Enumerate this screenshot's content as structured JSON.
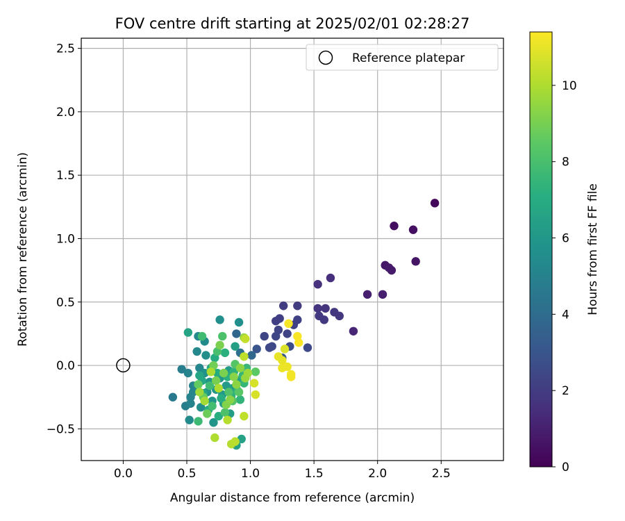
{
  "chart_data": {
    "type": "scatter",
    "title": "FOV centre drift starting at 2025/02/01 02:28:27",
    "xlabel": "Angular distance from reference (arcmin)",
    "ylabel": "Rotation from reference (arcmin)",
    "xlim": [
      -0.33,
      2.99
    ],
    "ylim": [
      -0.75,
      2.58
    ],
    "xticks": [
      "0.0",
      "0.5",
      "1.0",
      "1.5",
      "2.0",
      "2.5"
    ],
    "xtick_values": [
      0,
      0.5,
      1.0,
      1.5,
      2.0,
      2.5
    ],
    "yticks": [
      "−0.5",
      "0.0",
      "0.5",
      "1.0",
      "1.5",
      "2.0",
      "2.5"
    ],
    "ytick_values": [
      -0.5,
      0,
      0.5,
      1.0,
      1.5,
      2.0,
      2.5
    ],
    "grid": true,
    "legend": {
      "position": "upper-right",
      "entries": [
        "Reference platepar"
      ]
    },
    "reference_point": {
      "x": 0.0,
      "y": 0.0,
      "marker": "open-circle"
    },
    "colorbar": {
      "label": "Hours from first FF file",
      "min": 0,
      "max": 11.4,
      "ticks": [
        "0",
        "2",
        "4",
        "6",
        "8",
        "10"
      ],
      "tick_values": [
        0,
        2,
        4,
        6,
        8,
        10
      ],
      "colormap": "viridis"
    },
    "series": [
      {
        "points": [
          {
            "x": 2.45,
            "y": 1.28,
            "c": 0.2
          },
          {
            "x": 2.13,
            "y": 1.1,
            "c": 0.4
          },
          {
            "x": 2.28,
            "y": 1.07,
            "c": 0.5
          },
          {
            "x": 2.3,
            "y": 0.82,
            "c": 0.6
          },
          {
            "x": 2.06,
            "y": 0.79,
            "c": 0.7
          },
          {
            "x": 2.09,
            "y": 0.77,
            "c": 0.8
          },
          {
            "x": 2.11,
            "y": 0.75,
            "c": 0.8
          },
          {
            "x": 1.92,
            "y": 0.56,
            "c": 1.0
          },
          {
            "x": 2.04,
            "y": 0.56,
            "c": 1.0
          },
          {
            "x": 1.81,
            "y": 0.27,
            "c": 1.2
          },
          {
            "x": 1.63,
            "y": 0.69,
            "c": 1.5
          },
          {
            "x": 1.53,
            "y": 0.64,
            "c": 1.6
          },
          {
            "x": 1.53,
            "y": 0.45,
            "c": 1.7
          },
          {
            "x": 1.59,
            "y": 0.45,
            "c": 1.7
          },
          {
            "x": 1.66,
            "y": 0.42,
            "c": 1.8
          },
          {
            "x": 1.7,
            "y": 0.39,
            "c": 1.8
          },
          {
            "x": 1.54,
            "y": 0.39,
            "c": 1.9
          },
          {
            "x": 1.58,
            "y": 0.36,
            "c": 1.9
          },
          {
            "x": 1.26,
            "y": 0.47,
            "c": 2.0
          },
          {
            "x": 1.37,
            "y": 0.47,
            "c": 2.0
          },
          {
            "x": 1.2,
            "y": 0.35,
            "c": 2.1
          },
          {
            "x": 1.23,
            "y": 0.37,
            "c": 2.1
          },
          {
            "x": 1.37,
            "y": 0.36,
            "c": 2.2
          },
          {
            "x": 1.34,
            "y": 0.32,
            "c": 2.2
          },
          {
            "x": 1.22,
            "y": 0.28,
            "c": 2.3
          },
          {
            "x": 1.29,
            "y": 0.25,
            "c": 2.3
          },
          {
            "x": 1.11,
            "y": 0.23,
            "c": 2.4
          },
          {
            "x": 1.2,
            "y": 0.23,
            "c": 2.4
          },
          {
            "x": 1.45,
            "y": 0.14,
            "c": 2.5
          },
          {
            "x": 1.15,
            "y": 0.14,
            "c": 2.5
          },
          {
            "x": 1.17,
            "y": 0.15,
            "c": 2.5
          },
          {
            "x": 1.31,
            "y": 0.15,
            "c": 2.6
          },
          {
            "x": 1.05,
            "y": 0.13,
            "c": 3.0
          },
          {
            "x": 1.25,
            "y": 0.06,
            "c": 3.2
          },
          {
            "x": 0.89,
            "y": 0.25,
            "c": 3.8
          },
          {
            "x": 1.01,
            "y": 0.08,
            "c": 3.8
          },
          {
            "x": 0.92,
            "y": 0.1,
            "c": 4.2
          },
          {
            "x": 0.39,
            "y": -0.25,
            "c": 4.6
          },
          {
            "x": 0.46,
            "y": -0.03,
            "c": 4.8
          },
          {
            "x": 0.49,
            "y": -0.32,
            "c": 4.8
          },
          {
            "x": 0.51,
            "y": -0.06,
            "c": 5.0
          },
          {
            "x": 0.53,
            "y": -0.3,
            "c": 5.0
          },
          {
            "x": 0.53,
            "y": -0.25,
            "c": 5.0
          },
          {
            "x": 0.55,
            "y": -0.21,
            "c": 5.1
          },
          {
            "x": 0.55,
            "y": -0.16,
            "c": 5.1
          },
          {
            "x": 0.57,
            "y": -0.19,
            "c": 5.1
          },
          {
            "x": 0.6,
            "y": -0.02,
            "c": 5.2
          },
          {
            "x": 0.58,
            "y": 0.11,
            "c": 5.3
          },
          {
            "x": 0.59,
            "y": 0.23,
            "c": 5.3
          },
          {
            "x": 0.64,
            "y": 0.19,
            "c": 5.4
          },
          {
            "x": 0.52,
            "y": -0.43,
            "c": 5.4
          },
          {
            "x": 0.61,
            "y": -0.33,
            "c": 5.5
          },
          {
            "x": 0.65,
            "y": 0.08,
            "c": 5.5
          },
          {
            "x": 0.76,
            "y": 0.36,
            "c": 5.6
          },
          {
            "x": 0.91,
            "y": 0.34,
            "c": 5.6
          },
          {
            "x": 0.64,
            "y": -0.06,
            "c": 5.7
          },
          {
            "x": 0.66,
            "y": -0.21,
            "c": 5.8
          },
          {
            "x": 0.68,
            "y": -0.13,
            "c": 5.8
          },
          {
            "x": 0.7,
            "y": -0.28,
            "c": 5.9
          },
          {
            "x": 0.71,
            "y": -0.45,
            "c": 5.9
          },
          {
            "x": 0.73,
            "y": -0.19,
            "c": 6.0
          },
          {
            "x": 0.76,
            "y": -0.1,
            "c": 6.0
          },
          {
            "x": 0.78,
            "y": -0.23,
            "c": 6.1
          },
          {
            "x": 0.79,
            "y": -0.3,
            "c": 6.1
          },
          {
            "x": 0.81,
            "y": -0.16,
            "c": 6.2
          },
          {
            "x": 0.83,
            "y": -0.04,
            "c": 6.2
          },
          {
            "x": 0.84,
            "y": -0.38,
            "c": 6.3
          },
          {
            "x": 0.86,
            "y": -0.18,
            "c": 6.3
          },
          {
            "x": 0.88,
            "y": 0.15,
            "c": 6.4
          },
          {
            "x": 0.89,
            "y": -0.63,
            "c": 6.4
          },
          {
            "x": 0.93,
            "y": -0.58,
            "c": 6.5
          },
          {
            "x": 0.91,
            "y": -0.12,
            "c": 6.5
          },
          {
            "x": 0.51,
            "y": 0.26,
            "c": 6.6
          },
          {
            "x": 0.6,
            "y": -0.08,
            "c": 6.7
          },
          {
            "x": 0.62,
            "y": -0.12,
            "c": 6.8
          },
          {
            "x": 0.63,
            "y": -0.22,
            "c": 6.8
          },
          {
            "x": 0.67,
            "y": -0.35,
            "c": 6.9
          },
          {
            "x": 0.69,
            "y": -0.02,
            "c": 6.9
          },
          {
            "x": 0.72,
            "y": 0.06,
            "c": 7.0
          },
          {
            "x": 0.74,
            "y": -0.06,
            "c": 7.0
          },
          {
            "x": 0.75,
            "y": -0.4,
            "c": 7.1
          },
          {
            "x": 0.77,
            "y": -0.26,
            "c": 7.1
          },
          {
            "x": 0.8,
            "y": 0.1,
            "c": 7.2
          },
          {
            "x": 0.82,
            "y": -0.09,
            "c": 7.2
          },
          {
            "x": 0.85,
            "y": -0.24,
            "c": 7.3
          },
          {
            "x": 0.87,
            "y": -0.05,
            "c": 7.3
          },
          {
            "x": 0.9,
            "y": -0.2,
            "c": 7.4
          },
          {
            "x": 0.92,
            "y": -0.27,
            "c": 7.4
          },
          {
            "x": 0.94,
            "y": -0.08,
            "c": 7.5
          },
          {
            "x": 0.95,
            "y": -0.14,
            "c": 7.5
          },
          {
            "x": 0.97,
            "y": -0.02,
            "c": 7.6
          },
          {
            "x": 0.59,
            "y": -0.44,
            "c": 7.7
          },
          {
            "x": 0.62,
            "y": 0.23,
            "c": 7.8
          },
          {
            "x": 0.68,
            "y": -0.16,
            "c": 7.8
          },
          {
            "x": 0.7,
            "y": -0.32,
            "c": 7.9
          },
          {
            "x": 0.74,
            "y": 0.11,
            "c": 8.0
          },
          {
            "x": 0.78,
            "y": 0.23,
            "c": 8.1
          },
          {
            "x": 0.8,
            "y": -0.37,
            "c": 8.1
          },
          {
            "x": 0.83,
            "y": -0.21,
            "c": 8.2
          },
          {
            "x": 0.86,
            "y": -0.28,
            "c": 8.3
          },
          {
            "x": 0.88,
            "y": 0.01,
            "c": 8.3
          },
          {
            "x": 0.91,
            "y": -0.21,
            "c": 8.4
          },
          {
            "x": 1.04,
            "y": -0.05,
            "c": 8.5
          },
          {
            "x": 0.59,
            "y": -0.15,
            "c": 8.6
          },
          {
            "x": 0.63,
            "y": -0.25,
            "c": 8.7
          },
          {
            "x": 0.66,
            "y": -0.38,
            "c": 8.8
          },
          {
            "x": 0.71,
            "y": 0.0,
            "c": 8.9
          },
          {
            "x": 0.73,
            "y": -0.12,
            "c": 9.0
          },
          {
            "x": 0.76,
            "y": 0.16,
            "c": 9.1
          },
          {
            "x": 0.79,
            "y": -0.06,
            "c": 9.1
          },
          {
            "x": 0.81,
            "y": -0.31,
            "c": 9.2
          },
          {
            "x": 0.84,
            "y": -0.27,
            "c": 9.3
          },
          {
            "x": 0.87,
            "y": -0.09,
            "c": 9.3
          },
          {
            "x": 0.89,
            "y": -0.15,
            "c": 9.4
          },
          {
            "x": 0.92,
            "y": -0.02,
            "c": 9.4
          },
          {
            "x": 0.95,
            "y": 0.22,
            "c": 9.5
          },
          {
            "x": 0.96,
            "y": -0.1,
            "c": 9.6
          },
          {
            "x": 0.98,
            "y": -0.06,
            "c": 9.7
          },
          {
            "x": 0.6,
            "y": -0.21,
            "c": 9.7
          },
          {
            "x": 0.64,
            "y": -0.28,
            "c": 9.8
          },
          {
            "x": 0.69,
            "y": -0.05,
            "c": 9.9
          },
          {
            "x": 0.72,
            "y": -0.57,
            "c": 10.0
          },
          {
            "x": 0.75,
            "y": -0.18,
            "c": 10.0
          },
          {
            "x": 0.82,
            "y": -0.43,
            "c": 10.1
          },
          {
            "x": 0.85,
            "y": -0.62,
            "c": 10.1
          },
          {
            "x": 0.88,
            "y": -0.6,
            "c": 10.2
          },
          {
            "x": 0.95,
            "y": -0.4,
            "c": 10.3
          },
          {
            "x": 0.95,
            "y": 0.07,
            "c": 10.3
          },
          {
            "x": 0.96,
            "y": 0.21,
            "c": 10.4
          },
          {
            "x": 1.03,
            "y": -0.14,
            "c": 10.7
          },
          {
            "x": 1.04,
            "y": -0.23,
            "c": 10.7
          },
          {
            "x": 1.27,
            "y": 0.13,
            "c": 10.8
          },
          {
            "x": 1.22,
            "y": 0.07,
            "c": 11.0
          },
          {
            "x": 1.25,
            "y": 0.04,
            "c": 11.0
          },
          {
            "x": 1.25,
            "y": -0.02,
            "c": 11.1
          },
          {
            "x": 1.29,
            "y": -0.01,
            "c": 11.1
          },
          {
            "x": 1.32,
            "y": -0.07,
            "c": 11.2
          },
          {
            "x": 1.32,
            "y": -0.09,
            "c": 11.2
          },
          {
            "x": 1.3,
            "y": 0.33,
            "c": 11.3
          },
          {
            "x": 1.37,
            "y": 0.23,
            "c": 11.3
          },
          {
            "x": 1.38,
            "y": 0.18,
            "c": 11.4
          }
        ]
      }
    ]
  }
}
